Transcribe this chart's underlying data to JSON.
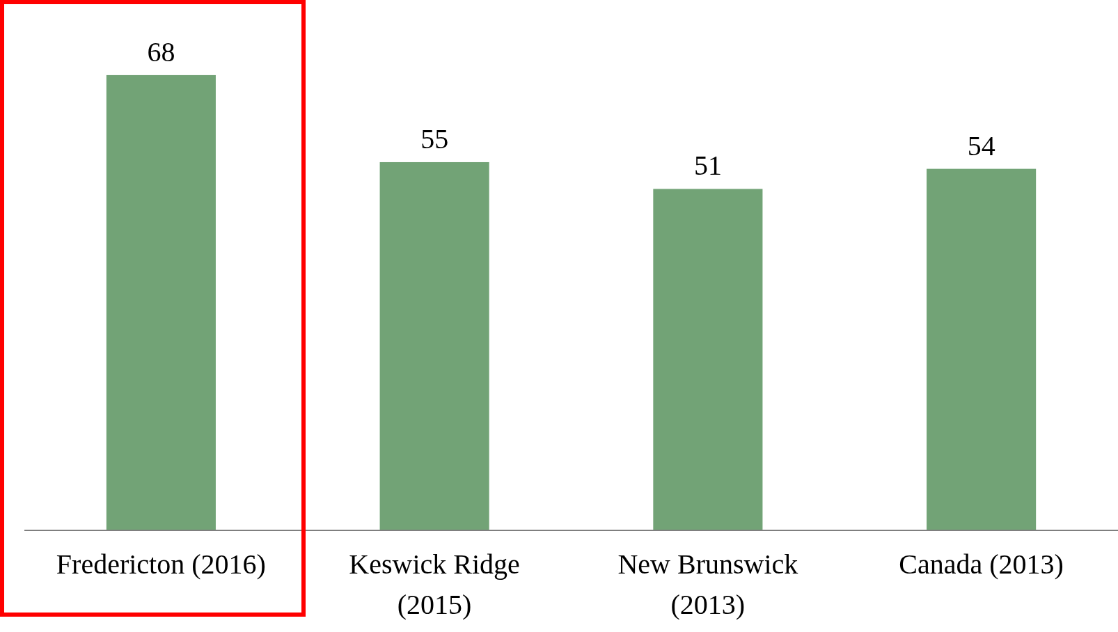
{
  "chart_data": {
    "type": "bar",
    "categories": [
      "Fredericton (2016)",
      "Keswick Ridge (2015)",
      "New Brunswick (2013)",
      "Canada (2013)"
    ],
    "values": [
      68,
      55,
      51,
      54
    ],
    "color": "#72a376",
    "data_labels": true
  }
}
